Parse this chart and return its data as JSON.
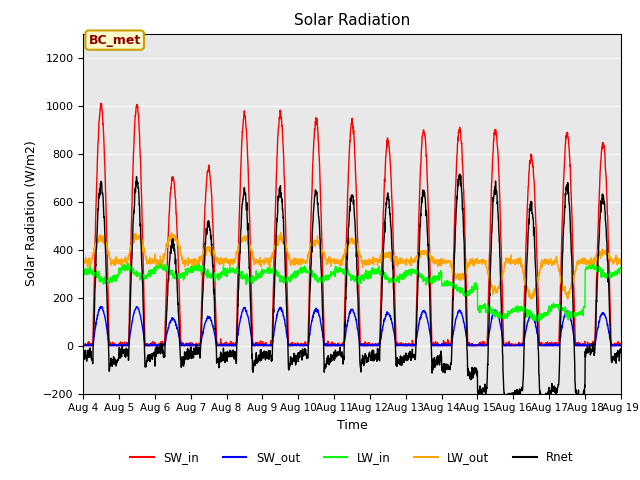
{
  "title": "Solar Radiation",
  "xlabel": "Time",
  "ylabel": "Solar Radiation (W/m2)",
  "legend_label": "BC_met",
  "series_names": [
    "SW_in",
    "SW_out",
    "LW_in",
    "LW_out",
    "Rnet"
  ],
  "series_colors": [
    "red",
    "blue",
    "lime",
    "orange",
    "black"
  ],
  "ylim": [
    -200,
    1300
  ],
  "yticks": [
    -200,
    0,
    200,
    400,
    600,
    800,
    1000,
    1200
  ],
  "start_day": 4,
  "end_day": 19,
  "num_days": 15,
  "points_per_day": 144,
  "background_color": "#e8e8e8",
  "sw_in_peaks": [
    1000,
    1000,
    700,
    740,
    960,
    970,
    940,
    930,
    850,
    900,
    900,
    900,
    790,
    880,
    840
  ],
  "lw_in_means": [
    290,
    305,
    310,
    305,
    295,
    295,
    295,
    295,
    290,
    290,
    240,
    140,
    135,
    145,
    310
  ],
  "lw_out_peaks": [
    450,
    460,
    460,
    400,
    450,
    450,
    430,
    440,
    380,
    390,
    280,
    225,
    205,
    215,
    390
  ],
  "lw_out_night": 350
}
